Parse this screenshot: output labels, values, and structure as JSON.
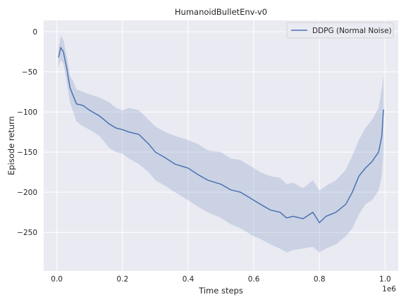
{
  "chart_data": {
    "type": "line",
    "title": "HumanoidBulletEnv-v0",
    "xlabel": "Time steps",
    "ylabel": "Episode return",
    "x_offset_label": "1e6",
    "xlim": [
      -0.04,
      1.04
    ],
    "ylim": [
      -298,
      14
    ],
    "xticks": [
      0.0,
      0.2,
      0.4,
      0.6,
      0.8,
      1.0
    ],
    "xtick_labels": [
      "0.0",
      "0.2",
      "0.4",
      "0.6",
      "0.8",
      "1.0"
    ],
    "yticks": [
      0,
      -50,
      -100,
      -150,
      -200,
      -250
    ],
    "ytick_labels": [
      "0",
      "−50",
      "−100",
      "−150",
      "−200",
      "−250"
    ],
    "grid": true,
    "legend_position": "top-right",
    "colors": {
      "line": "#4c72b0",
      "band": "#4c72b0",
      "plot_bg": "#eaeaf2",
      "grid": "#ffffff"
    },
    "series": [
      {
        "name": "DDPG (Normal Noise)",
        "x": [
          0.005,
          0.012,
          0.02,
          0.03,
          0.04,
          0.05,
          0.06,
          0.08,
          0.1,
          0.13,
          0.16,
          0.18,
          0.2,
          0.22,
          0.25,
          0.28,
          0.3,
          0.33,
          0.36,
          0.4,
          0.43,
          0.46,
          0.5,
          0.53,
          0.56,
          0.58,
          0.6,
          0.62,
          0.65,
          0.68,
          0.7,
          0.72,
          0.75,
          0.78,
          0.8,
          0.82,
          0.85,
          0.88,
          0.9,
          0.92,
          0.94,
          0.96,
          0.98,
          0.99,
          0.995
        ],
        "mean": [
          -32,
          -20,
          -25,
          -45,
          -70,
          -80,
          -90,
          -92,
          -98,
          -105,
          -115,
          -120,
          -122,
          -125,
          -128,
          -140,
          -150,
          -157,
          -165,
          -170,
          -178,
          -185,
          -190,
          -197,
          -200,
          -205,
          -210,
          -215,
          -222,
          -225,
          -232,
          -230,
          -233,
          -225,
          -238,
          -230,
          -225,
          -215,
          -200,
          -180,
          -170,
          -162,
          -150,
          -130,
          -97
        ],
        "lower": [
          -45,
          -35,
          -40,
          -62,
          -88,
          -100,
          -112,
          -118,
          -122,
          -130,
          -145,
          -150,
          -152,
          -158,
          -165,
          -175,
          -185,
          -192,
          -200,
          -210,
          -218,
          -225,
          -232,
          -240,
          -245,
          -250,
          -255,
          -258,
          -265,
          -270,
          -275,
          -272,
          -270,
          -268,
          -275,
          -270,
          -265,
          -255,
          -245,
          -228,
          -215,
          -210,
          -198,
          -180,
          -150
        ],
        "upper": [
          -20,
          -5,
          -10,
          -30,
          -55,
          -62,
          -72,
          -75,
          -78,
          -82,
          -88,
          -95,
          -98,
          -95,
          -98,
          -110,
          -118,
          -125,
          -130,
          -135,
          -140,
          -148,
          -150,
          -158,
          -160,
          -165,
          -170,
          -175,
          -180,
          -182,
          -190,
          -188,
          -195,
          -185,
          -198,
          -192,
          -185,
          -172,
          -155,
          -135,
          -120,
          -110,
          -95,
          -70,
          -55
        ]
      }
    ]
  }
}
